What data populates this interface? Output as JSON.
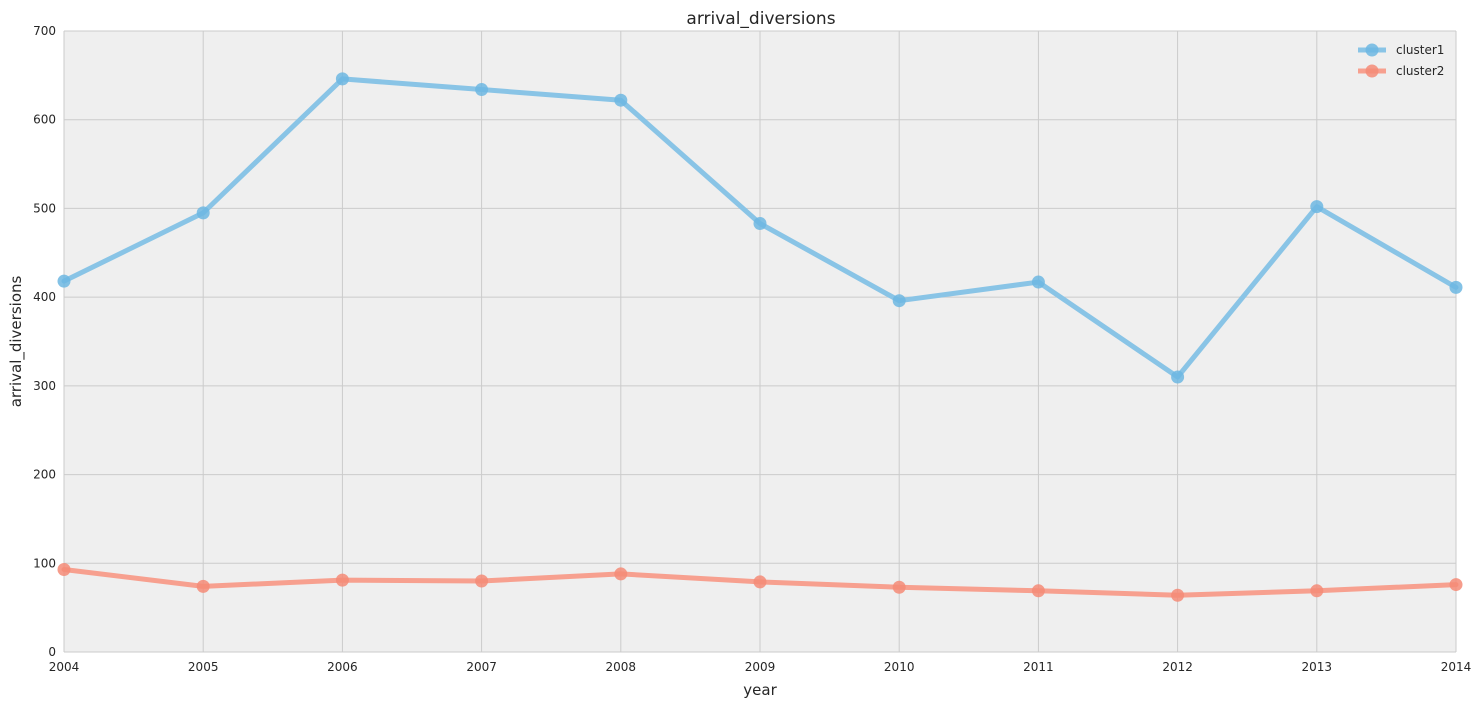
{
  "chart_data": {
    "type": "line",
    "title": "arrival_diversions",
    "xlabel": "year",
    "ylabel": "arrival_diversions",
    "x": [
      2004,
      2005,
      2006,
      2007,
      2008,
      2009,
      2010,
      2011,
      2012,
      2013,
      2014
    ],
    "xticks": [
      "2004",
      "2005",
      "2006",
      "2007",
      "2008",
      "2009",
      "2010",
      "2011",
      "2012",
      "2013",
      "2014"
    ],
    "xlim": [
      2004,
      2014
    ],
    "yticks": [
      "0",
      "100",
      "200",
      "300",
      "400",
      "500",
      "600",
      "700"
    ],
    "ylim": [
      0,
      700
    ],
    "grid": true,
    "legend_position": "top-right",
    "background": "#efefef",
    "series": [
      {
        "name": "cluster1",
        "color": "#89c4e6",
        "marker_color": "#6db7e2",
        "values": [
          418,
          495,
          646,
          634,
          622,
          483,
          396,
          417,
          310,
          502,
          411
        ]
      },
      {
        "name": "cluster2",
        "color": "#f7a08f",
        "marker_color": "#f58b77",
        "values": [
          93,
          74,
          81,
          80,
          88,
          79,
          73,
          69,
          64,
          69,
          76
        ]
      }
    ]
  }
}
